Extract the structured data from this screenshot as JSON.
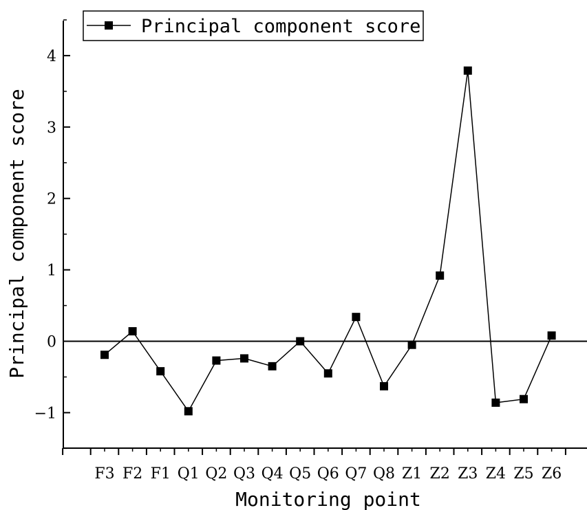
{
  "chart_data": {
    "type": "line",
    "categories": [
      "F3",
      "F2",
      "F1",
      "Q1",
      "Q2",
      "Q3",
      "Q4",
      "Q5",
      "Q6",
      "Q7",
      "Q8",
      "Z1",
      "Z2",
      "Z3",
      "Z4",
      "Z5",
      "Z6"
    ],
    "series": [
      {
        "name": "Principal component score",
        "values": [
          -0.19,
          0.14,
          -0.42,
          -0.98,
          -0.27,
          -0.24,
          -0.35,
          0.0,
          -0.45,
          0.34,
          -0.63,
          -0.05,
          0.92,
          3.79,
          -0.86,
          -0.81,
          0.08
        ]
      }
    ],
    "xlabel": "Monitoring point",
    "ylabel": "Principal component score",
    "ylim": [
      -1.5,
      4.5
    ],
    "yticks": [
      "4",
      "3",
      "2",
      "1",
      "0",
      "−1"
    ],
    "reference_line": 0,
    "legend_position": "top-left",
    "marker": "square",
    "color": "#000000"
  }
}
